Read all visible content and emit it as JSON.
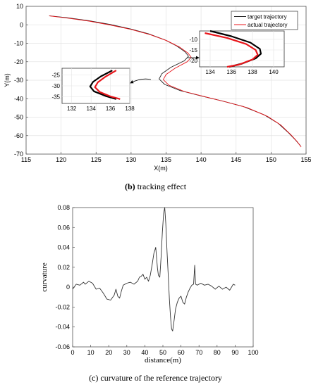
{
  "captions": {
    "top_tag": "(b)",
    "top_text": " tracking effect",
    "bottom_text": "(c) curvature of the reference trajectory"
  },
  "chart_data": [
    {
      "type": "line",
      "xlabel": "X(m)",
      "ylabel": "Y(m)",
      "xlim": [
        115,
        155
      ],
      "ylim": [
        -70,
        10
      ],
      "xticks": [
        115,
        120,
        125,
        130,
        135,
        140,
        145,
        150,
        155
      ],
      "yticks": [
        10,
        0,
        -10,
        -20,
        -30,
        -40,
        -50,
        -60,
        -70
      ],
      "grid": true,
      "legend": "top-right",
      "legend_entries": [
        "target trajectory",
        "actual trajectory"
      ],
      "series": [
        {
          "name": "target trajectory",
          "color": "#222222",
          "points": [
            [
              118.3,
              4.9
            ],
            [
              121,
              3.8
            ],
            [
              124,
              2.2
            ],
            [
              127,
              0.2
            ],
            [
              130,
              -2.3
            ],
            [
              132.5,
              -4.9
            ],
            [
              134.8,
              -8.1
            ],
            [
              136.5,
              -11.4
            ],
            [
              137.7,
              -14.6
            ],
            [
              138.2,
              -17.0
            ],
            [
              137.6,
              -19.5
            ],
            [
              135.7,
              -23.0
            ],
            [
              134.4,
              -26.5
            ],
            [
              134.0,
              -29.3
            ],
            [
              134.8,
              -32.3
            ],
            [
              137,
              -35.6
            ],
            [
              140,
              -38.5
            ],
            [
              143,
              -41.2
            ],
            [
              146,
              -44.2
            ],
            [
              149,
              -48.7
            ],
            [
              151,
              -53.3
            ],
            [
              152.5,
              -58.5
            ],
            [
              153.5,
              -62.4
            ],
            [
              154.2,
              -65.5
            ]
          ]
        },
        {
          "name": "actual trajectory",
          "color": "#e8161b",
          "points": [
            [
              118.3,
              4.8
            ],
            [
              121,
              3.6
            ],
            [
              124,
              2.0
            ],
            [
              127,
              -0.1
            ],
            [
              130,
              -2.5
            ],
            [
              132.7,
              -5.3
            ],
            [
              135.1,
              -8.6
            ],
            [
              136.9,
              -12.0
            ],
            [
              138.1,
              -15.2
            ],
            [
              138.6,
              -17.6
            ],
            [
              138.0,
              -20.0
            ],
            [
              136.3,
              -23.5
            ],
            [
              135.0,
              -26.9
            ],
            [
              134.6,
              -29.7
            ],
            [
              135.4,
              -32.7
            ],
            [
              137.6,
              -36.1
            ],
            [
              140.6,
              -39.0
            ],
            [
              143.6,
              -41.8
            ],
            [
              146.6,
              -44.9
            ],
            [
              149.5,
              -49.6
            ],
            [
              151.4,
              -54.3
            ],
            [
              152.8,
              -59.4
            ],
            [
              153.7,
              -63.1
            ],
            [
              154.3,
              -66.2
            ]
          ]
        }
      ],
      "insets": [
        {
          "name": "upper-right-zoom",
          "xlim": [
            133,
            141
          ],
          "ylim": [
            -23,
            -6
          ],
          "xticks": [
            134,
            136,
            138,
            140
          ],
          "yticks": [
            -10,
            -15,
            -20
          ],
          "target": [
            [
              134,
              -6
            ],
            [
              136,
              -8.5
            ],
            [
              137.8,
              -11.5
            ],
            [
              138.7,
              -14.5
            ],
            [
              138.8,
              -16.8
            ],
            [
              138.3,
              -19
            ],
            [
              137,
              -21.5
            ],
            [
              135.8,
              -23
            ]
          ],
          "actual": [
            [
              133.5,
              -7
            ],
            [
              135.6,
              -9.3
            ],
            [
              137.4,
              -12.2
            ],
            [
              138.3,
              -15
            ],
            [
              138.5,
              -17.3
            ],
            [
              138,
              -19.5
            ],
            [
              136.7,
              -22
            ],
            [
              135.6,
              -23
            ]
          ]
        },
        {
          "name": "lower-left-zoom",
          "xlim": [
            131,
            138
          ],
          "ylim": [
            -38,
            -22
          ],
          "xticks": [
            132,
            134,
            136,
            138
          ],
          "yticks": [
            -25,
            -30,
            -35
          ],
          "target": [
            [
              136.2,
              -23
            ],
            [
              135,
              -25.7
            ],
            [
              134.2,
              -28.2
            ],
            [
              133.9,
              -30.3
            ],
            [
              134.3,
              -32.5
            ],
            [
              135.5,
              -34.6
            ],
            [
              136.6,
              -36
            ]
          ],
          "actual": [
            [
              136.6,
              -23
            ],
            [
              135.5,
              -25.8
            ],
            [
              134.7,
              -28.4
            ],
            [
              134.4,
              -30.6
            ],
            [
              134.9,
              -32.8
            ],
            [
              136,
              -34.8
            ],
            [
              137,
              -36
            ]
          ]
        }
      ]
    },
    {
      "type": "line",
      "xlabel": "distance(m)",
      "ylabel": "curvature",
      "xlim": [
        0,
        100
      ],
      "ylim": [
        -0.06,
        0.08
      ],
      "xticks": [
        0,
        10,
        20,
        30,
        40,
        50,
        60,
        70,
        80,
        90,
        100
      ],
      "yticks": [
        0.08,
        0.06,
        0.04,
        0.02,
        0,
        -0.02,
        -0.04,
        -0.06
      ],
      "grid": false,
      "series": [
        {
          "name": "",
          "color": "#333333",
          "points": [
            [
              0,
              -0.002
            ],
            [
              2,
              0.003
            ],
            [
              4,
              0.002
            ],
            [
              6,
              0.005
            ],
            [
              7,
              0.003
            ],
            [
              9,
              0.006
            ],
            [
              11,
              0.004
            ],
            [
              13,
              -0.002
            ],
            [
              15,
              -0.001
            ],
            [
              17,
              -0.006
            ],
            [
              19,
              -0.012
            ],
            [
              21,
              -0.013
            ],
            [
              23,
              -0.008
            ],
            [
              24,
              -0.002
            ],
            [
              25,
              -0.009
            ],
            [
              26,
              -0.011
            ],
            [
              27,
              -0.004
            ],
            [
              28,
              0.002
            ],
            [
              30,
              0.004
            ],
            [
              32,
              0.005
            ],
            [
              34,
              0.003
            ],
            [
              36,
              0.006
            ],
            [
              37,
              0.01
            ],
            [
              38,
              0.011
            ],
            [
              39,
              0.013
            ],
            [
              40,
              0.008
            ],
            [
              41,
              0.01
            ],
            [
              42,
              0.006
            ],
            [
              43,
              0.012
            ],
            [
              44,
              0.022
            ],
            [
              45,
              0.034
            ],
            [
              46,
              0.04
            ],
            [
              47,
              0.019
            ],
            [
              47.5,
              0.012
            ],
            [
              48.3,
              0.01
            ],
            [
              49,
              0.03
            ],
            [
              49.7,
              0.055
            ],
            [
              50.4,
              0.074
            ],
            [
              51,
              0.08
            ],
            [
              51.6,
              0.064
            ],
            [
              52.3,
              0.035
            ],
            [
              53,
              0.01
            ],
            [
              53.6,
              -0.012
            ],
            [
              54.2,
              -0.03
            ],
            [
              54.8,
              -0.042
            ],
            [
              55.4,
              -0.044
            ],
            [
              56,
              -0.036
            ],
            [
              57,
              -0.022
            ],
            [
              58,
              -0.015
            ],
            [
              59,
              -0.011
            ],
            [
              60,
              -0.009
            ],
            [
              61,
              -0.015
            ],
            [
              62,
              -0.017
            ],
            [
              63,
              -0.01
            ],
            [
              64,
              -0.005
            ],
            [
              65,
              -0.001
            ],
            [
              66,
              0.002
            ],
            [
              67,
              0.003
            ],
            [
              67.6,
              0.022
            ],
            [
              68.1,
              0.003
            ],
            [
              69,
              0.002
            ],
            [
              71,
              0.004
            ],
            [
              73,
              0.002
            ],
            [
              75,
              0.003
            ],
            [
              77,
              0.001
            ],
            [
              79,
              -0.002
            ],
            [
              81,
              0.001
            ],
            [
              83,
              -0.002
            ],
            [
              85,
              0.0
            ],
            [
              87,
              -0.003
            ],
            [
              88,
              0.0
            ],
            [
              89,
              0.003
            ],
            [
              90,
              0.002
            ]
          ]
        }
      ]
    }
  ]
}
